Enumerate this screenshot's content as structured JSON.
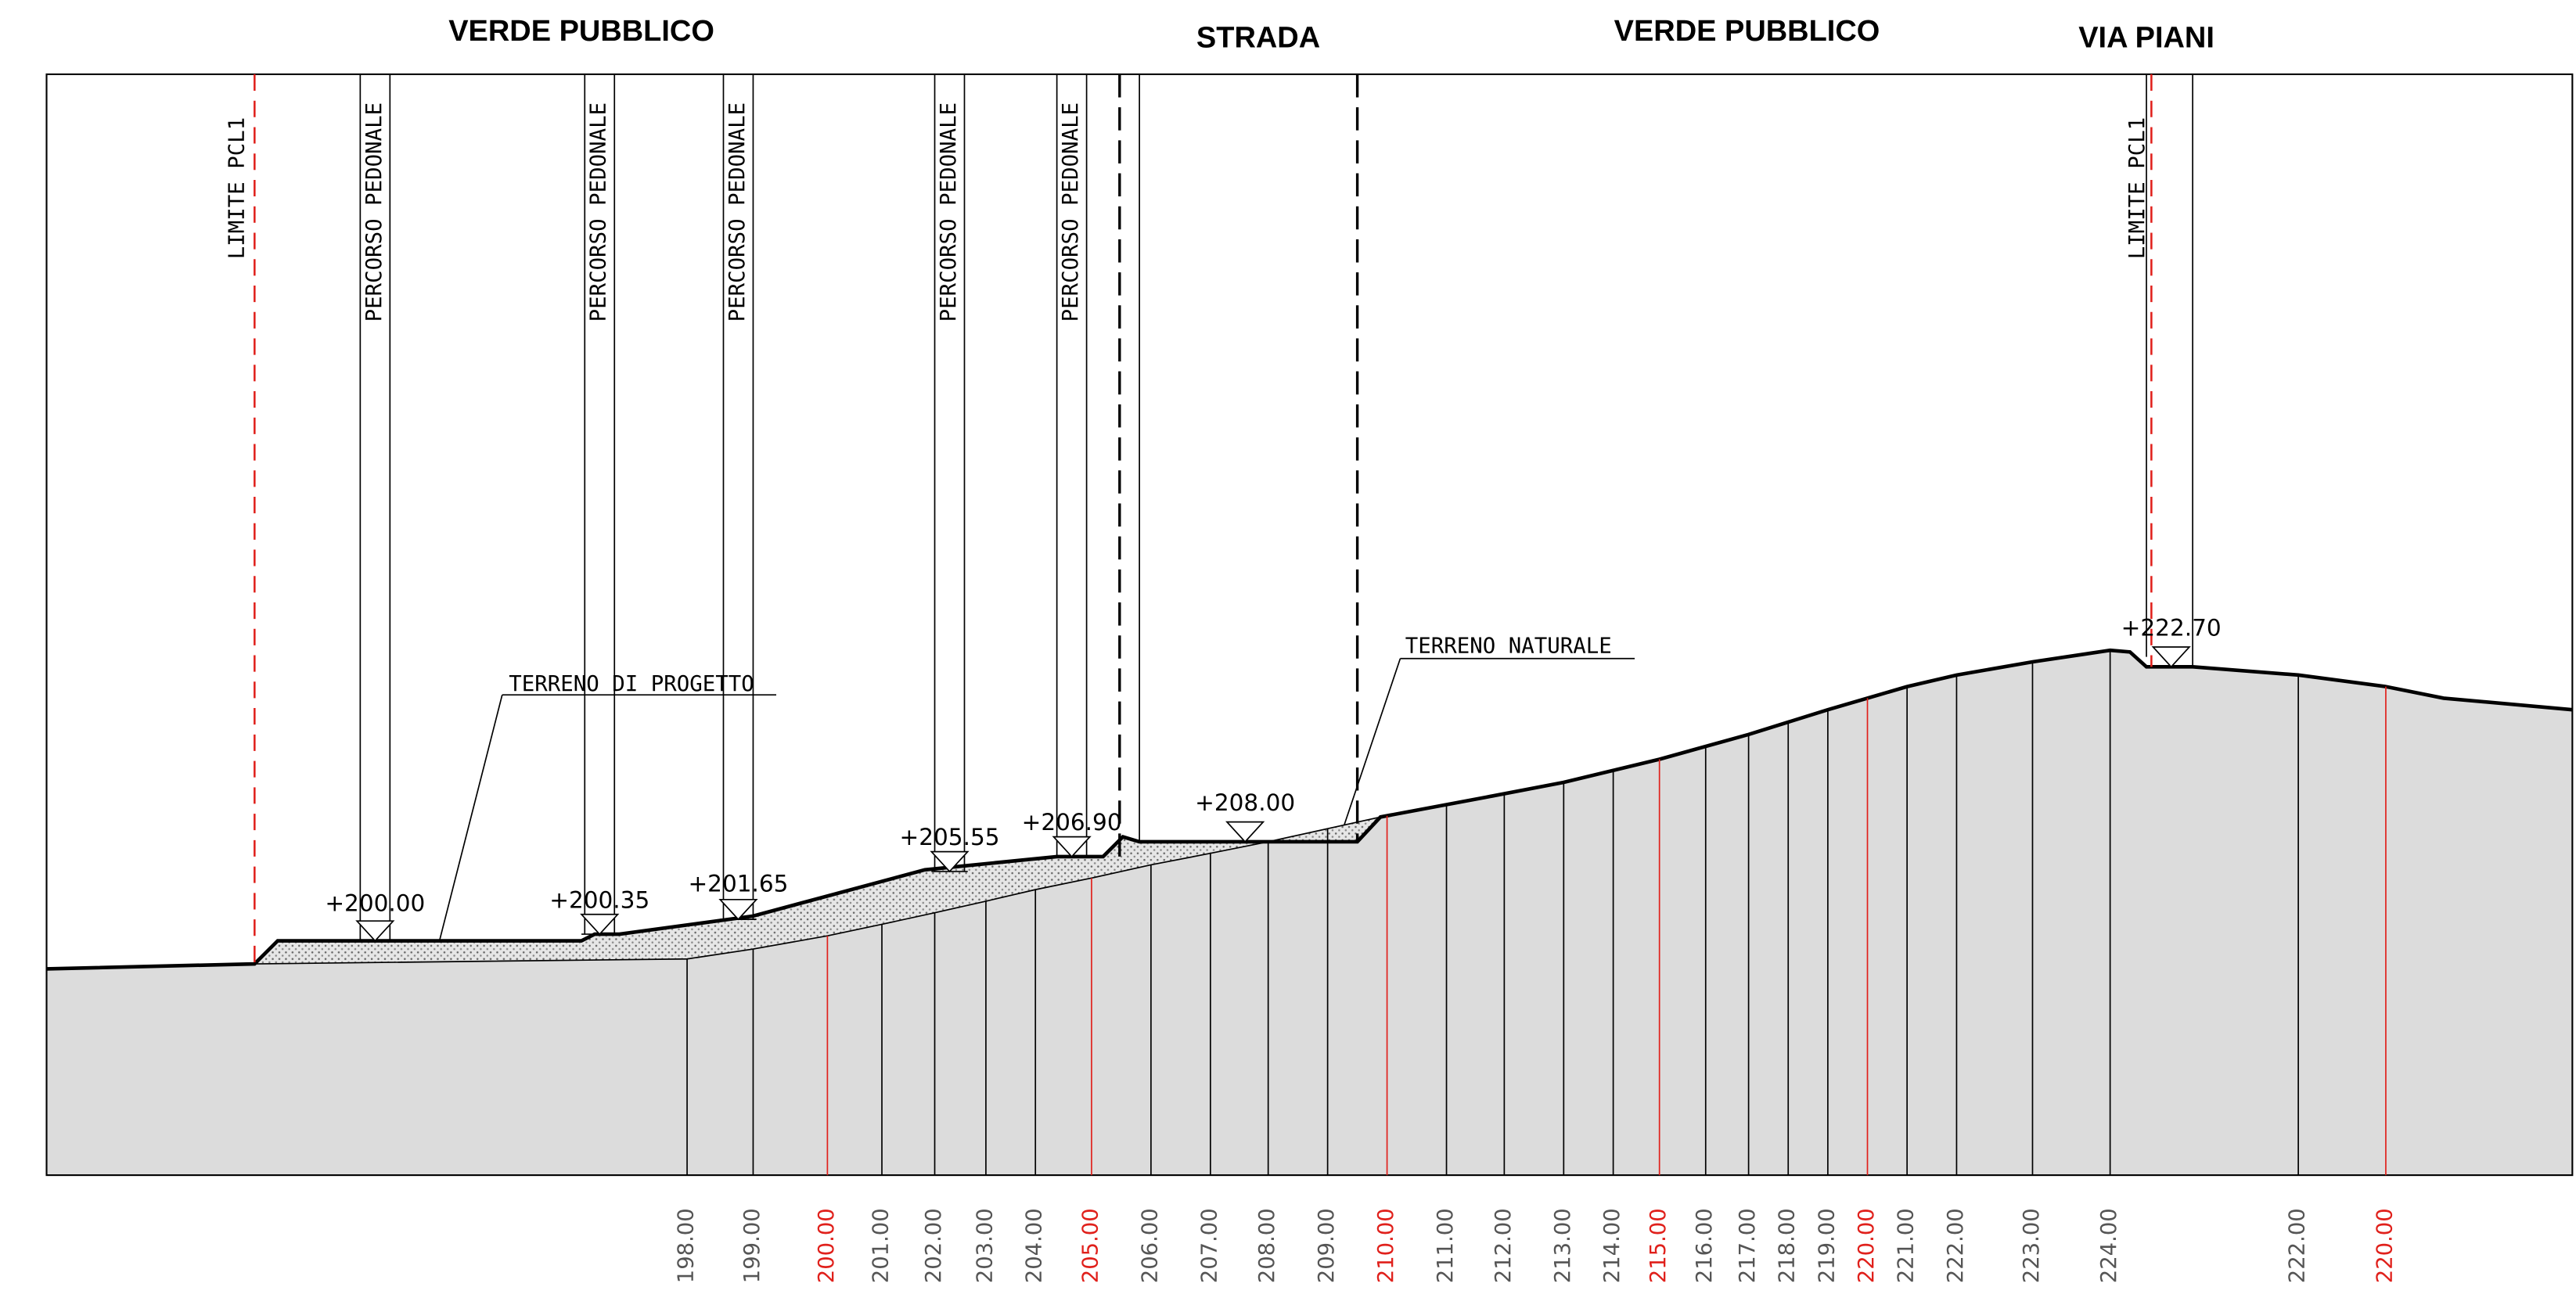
{
  "zones": [
    "VERDE PUBBLICO",
    "STRADA",
    "VERDE PUBBLICO",
    "VIA PIANI"
  ],
  "limits": [
    "LIMITE PCL1",
    "LIMITE PCL1"
  ],
  "walkways": [
    "PERCORSO PEDONALE",
    "PERCORSO PEDONALE",
    "PERCORSO PEDONALE",
    "PERCORSO PEDONALE",
    "PERCORSO PEDONALE"
  ],
  "elevations": [
    "+200.00",
    "+200.35",
    "+201.65",
    "+205.55",
    "+206.90",
    "+208.00",
    "+222.70"
  ],
  "annotations": [
    "TERRENO DI PROGETTO",
    "TERRENO NATURALE"
  ],
  "levels": [
    {
      "label": "198.00"
    },
    {
      "label": "199.00"
    },
    {
      "label": "200.00",
      "color": "#e0201b"
    },
    {
      "label": "201.00"
    },
    {
      "label": "202.00"
    },
    {
      "label": "203.00"
    },
    {
      "label": "204.00"
    },
    {
      "label": "205.00",
      "color": "#e0201b"
    },
    {
      "label": "206.00"
    },
    {
      "label": "207.00"
    },
    {
      "label": "208.00"
    },
    {
      "label": "209.00"
    },
    {
      "label": "210.00",
      "color": "#e0201b"
    },
    {
      "label": "211.00"
    },
    {
      "label": "212.00"
    },
    {
      "label": "213.00"
    },
    {
      "label": "214.00"
    },
    {
      "label": "215.00",
      "color": "#e0201b"
    },
    {
      "label": "216.00"
    },
    {
      "label": "217.00"
    },
    {
      "label": "218.00"
    },
    {
      "label": "219.00"
    },
    {
      "label": "220.00",
      "color": "#e0201b"
    },
    {
      "label": "221.00"
    },
    {
      "label": "222.00"
    },
    {
      "label": "223.00"
    },
    {
      "label": "224.00"
    },
    {
      "label": "222.00"
    },
    {
      "label": "220.00",
      "color": "#e0201b"
    }
  ]
}
